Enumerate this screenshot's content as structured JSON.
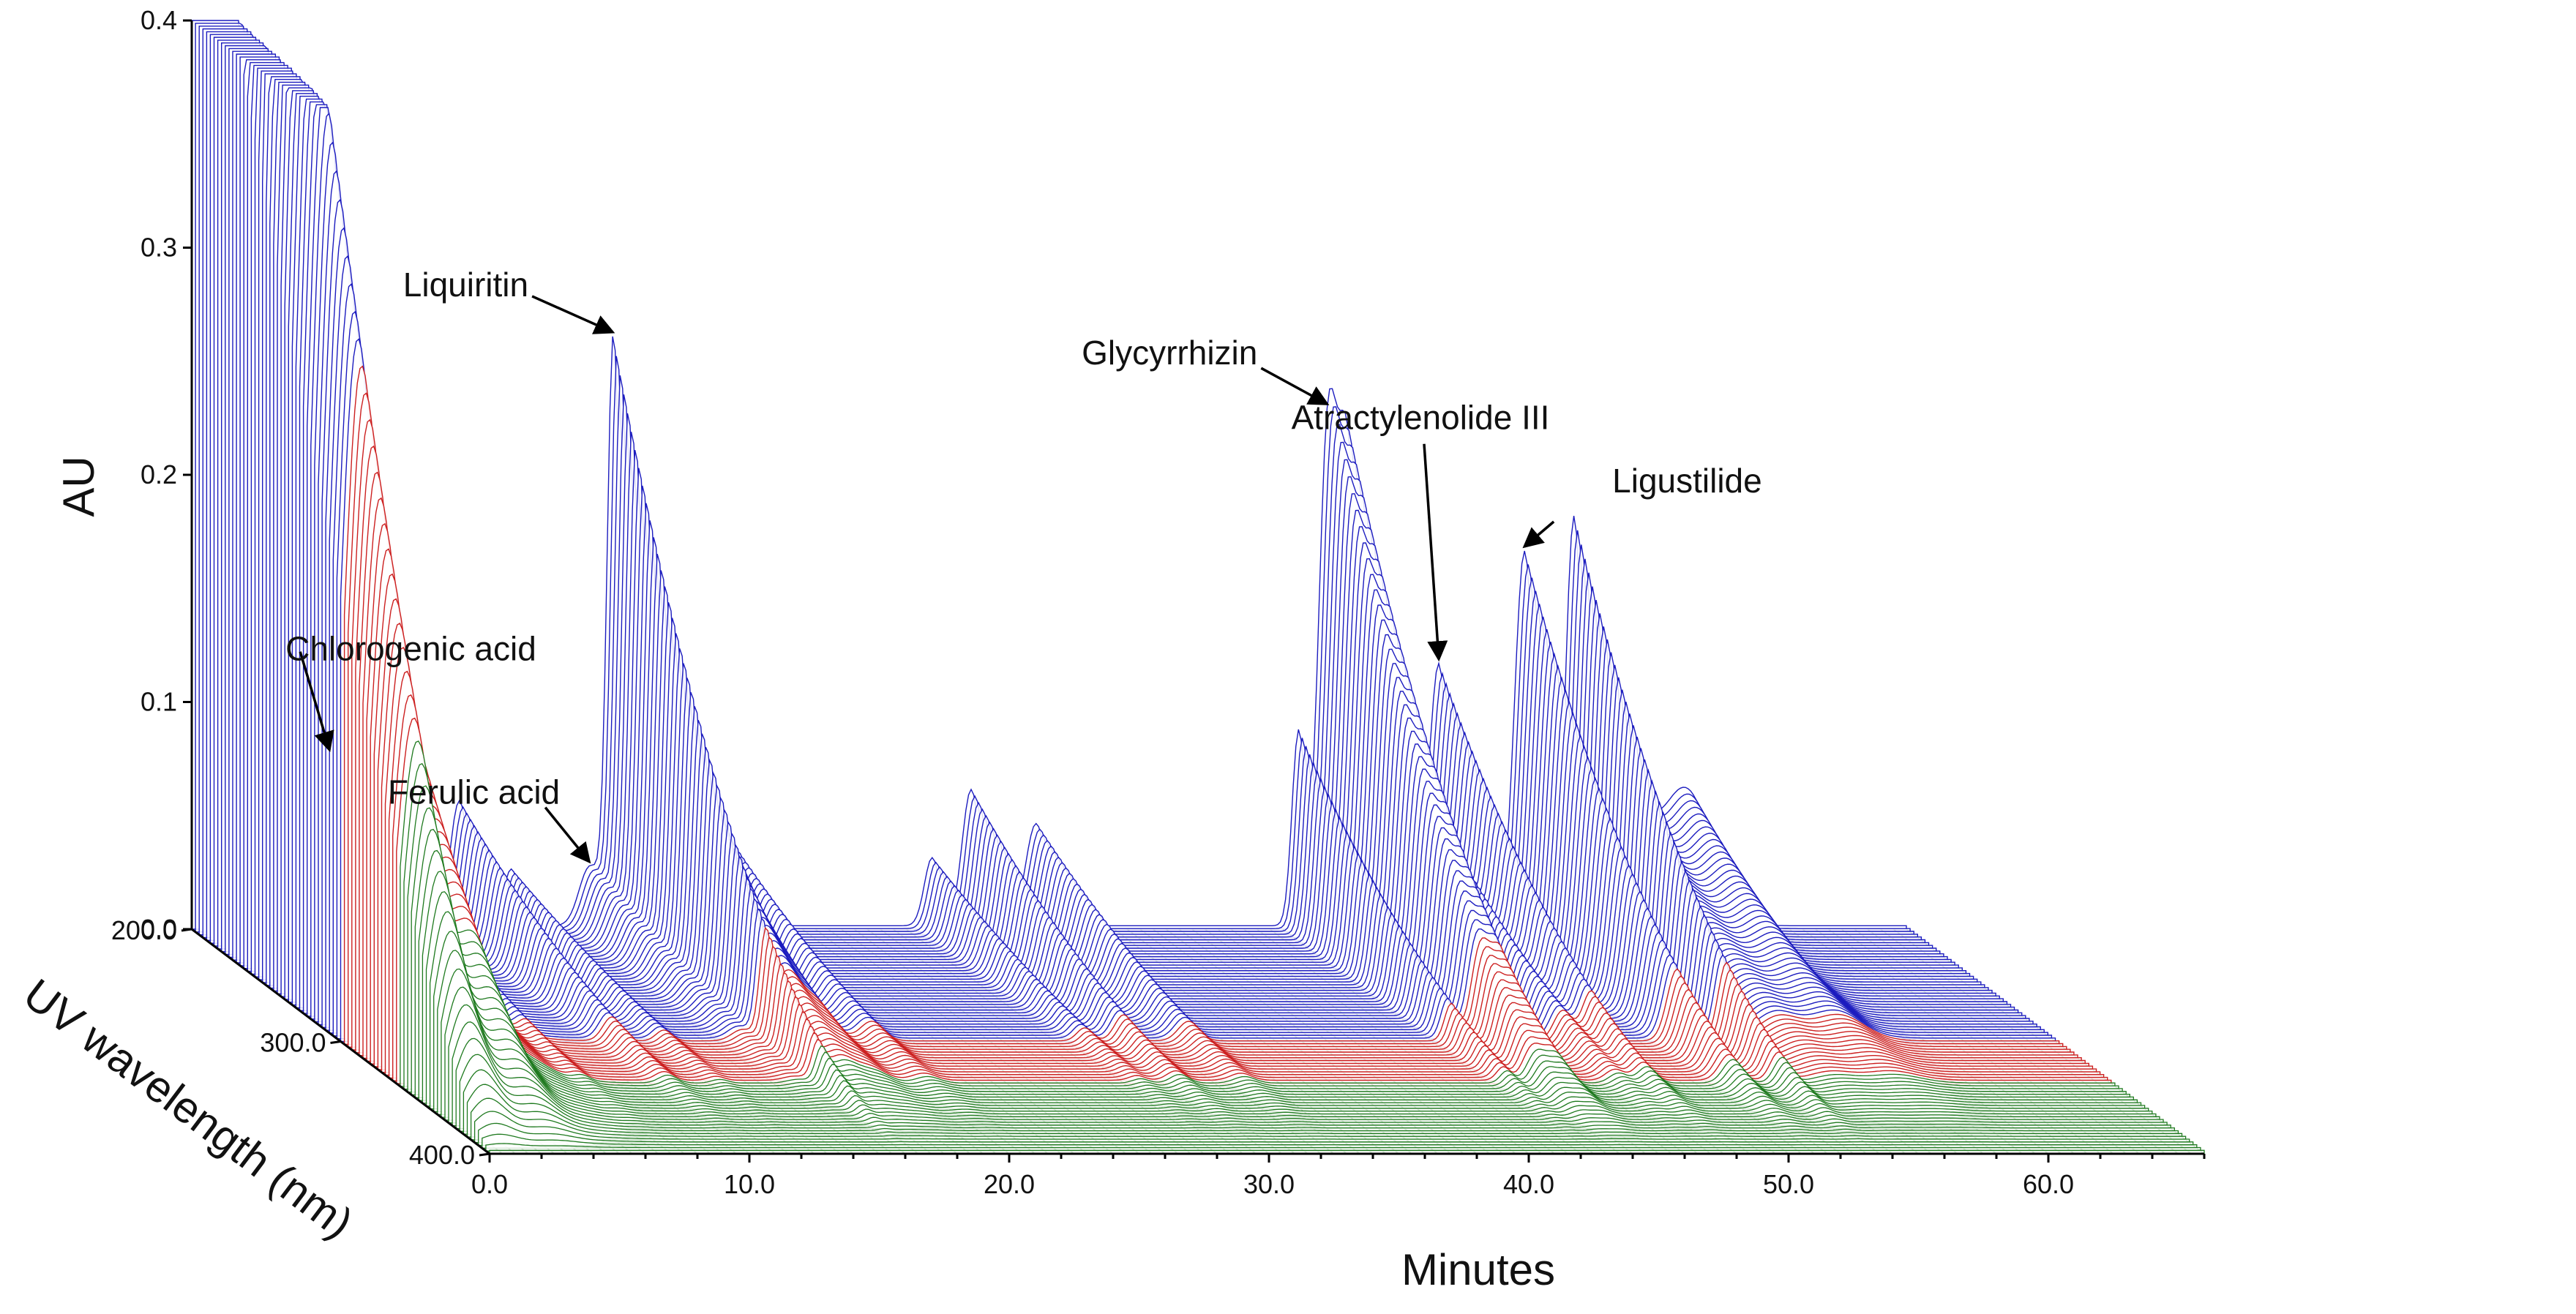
{
  "chart_data": {
    "type": "3d-waterfall",
    "xlabel": "Minutes",
    "ylabel": "AU",
    "zlabel": "UV wavelength (nm)",
    "x_ticks": [
      "0.0",
      "10.0",
      "20.0",
      "30.0",
      "40.0",
      "50.0",
      "60.0"
    ],
    "x_tick_values": [
      0,
      10,
      20,
      30,
      40,
      50,
      60
    ],
    "y_ticks": [
      "0.0",
      "0.1",
      "0.2",
      "0.3",
      "0.4"
    ],
    "y_tick_values": [
      0,
      0.1,
      0.2,
      0.3,
      0.4
    ],
    "z_ticks": [
      "200.0",
      "300.0",
      "400.0"
    ],
    "z_tick_values": [
      200,
      300,
      400
    ],
    "xlim": [
      0,
      66
    ],
    "ylim": [
      0,
      0.4
    ],
    "zlim": [
      200,
      400
    ],
    "colors": {
      "low": "#1f7a1f",
      "mid": "#cc2020",
      "high": "#1c1cbf"
    },
    "color_thresholds_au": [
      0.158,
      0.3
    ],
    "peaks_at_200nm": [
      {
        "t": 0.35,
        "au": 0.4,
        "w": 0.5,
        "name": ""
      },
      {
        "t": 1.0,
        "au": 0.4,
        "w": 0.55,
        "name": ""
      },
      {
        "t": 2.8,
        "au": 0.22,
        "w": 0.8,
        "name": ""
      },
      {
        "t": 1.6,
        "au": 0.16,
        "w": 2.2,
        "name": ""
      },
      {
        "t": 5.3,
        "au": 0.035,
        "w": 0.6,
        "name": "Chlorogenic acid"
      },
      {
        "t": 7.0,
        "au": 0.035,
        "w": 0.3,
        "name": ""
      },
      {
        "t": 10.3,
        "au": 0.055,
        "w": 0.35,
        "name": ""
      },
      {
        "t": 12.3,
        "au": 0.025,
        "w": 0.3,
        "name": ""
      },
      {
        "t": 15.3,
        "au": 0.025,
        "w": 0.4,
        "name": "Ferulic acid"
      },
      {
        "t": 16.2,
        "au": 0.205,
        "w": 0.22,
        "name": "Liquiritin"
      },
      {
        "t": 17.0,
        "au": 0.15,
        "w": 0.55,
        "name": ""
      },
      {
        "t": 18.2,
        "au": 0.085,
        "w": 0.6,
        "name": ""
      },
      {
        "t": 20.3,
        "au": 0.045,
        "w": 0.45,
        "name": ""
      },
      {
        "t": 28.5,
        "au": 0.03,
        "w": 0.3,
        "name": ""
      },
      {
        "t": 30.0,
        "au": 0.06,
        "w": 0.35,
        "name": ""
      },
      {
        "t": 32.5,
        "au": 0.045,
        "w": 0.4,
        "name": ""
      },
      {
        "t": 42.6,
        "au": 0.085,
        "w": 0.25,
        "name": ""
      },
      {
        "t": 43.7,
        "au": 0.2,
        "w": 0.35,
        "name": "Glycyrrhizin"
      },
      {
        "t": 44.5,
        "au": 0.205,
        "w": 0.4,
        "name": ""
      },
      {
        "t": 46.9,
        "au": 0.07,
        "w": 0.35,
        "name": ""
      },
      {
        "t": 48.0,
        "au": 0.115,
        "w": 0.35,
        "name": "Atractylenolide III"
      },
      {
        "t": 51.3,
        "au": 0.165,
        "w": 0.38,
        "name": "Ligustilide"
      },
      {
        "t": 53.2,
        "au": 0.178,
        "w": 0.32,
        "name": ""
      },
      {
        "t": 55.2,
        "au": 0.055,
        "w": 0.8,
        "name": ""
      },
      {
        "t": 57.5,
        "au": 0.06,
        "w": 1.0,
        "name": ""
      }
    ],
    "annotations": [
      {
        "label": "Chlorogenic acid",
        "target_t": 5.3
      },
      {
        "label": "Ferulic acid",
        "target_t": 15.3
      },
      {
        "label": "Liquiritin",
        "target_t": 16.2
      },
      {
        "label": "Glycyrrhizin",
        "target_t": 43.7
      },
      {
        "label": "Atractylenolide III",
        "target_t": 48.0
      },
      {
        "label": "Ligustilide",
        "target_t": 51.3
      }
    ]
  }
}
